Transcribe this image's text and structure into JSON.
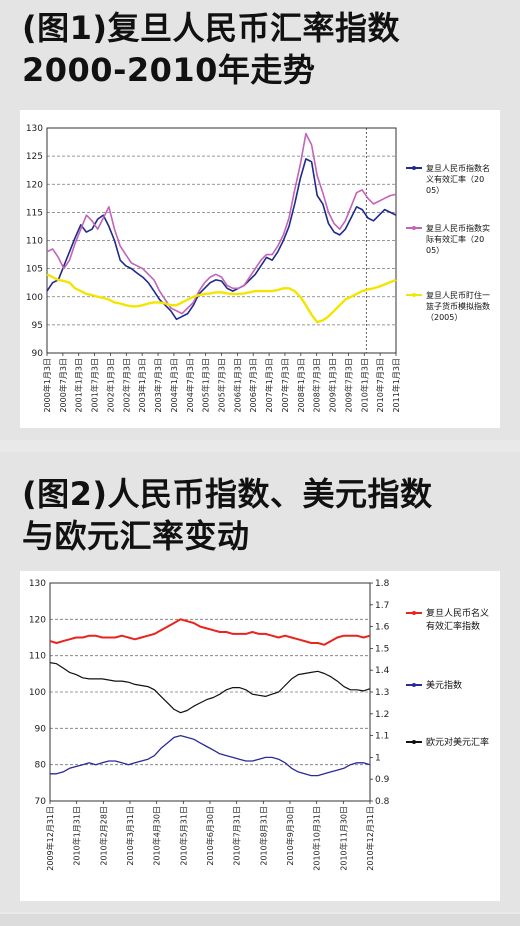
{
  "chart1": {
    "title_line1": "(图1)复旦人民币汇率指数",
    "title_line2": "2000-2010年走势"
  },
  "chart2": {
    "title_line1": "(图2)人民币指数、美元指数",
    "title_line2": "与欧元汇率变动"
  },
  "colors": {
    "blue": "#1f2a8c",
    "pink": "#c264b8",
    "yellow": "#f2e600",
    "red": "#e8241c",
    "navy": "#2a2a9a",
    "black": "#111111"
  },
  "chart_data": [
    {
      "type": "line",
      "ylim": [
        90,
        130
      ],
      "yticks": [
        "130",
        "125",
        "120",
        "115",
        "110",
        "105",
        "100",
        "95",
        "90"
      ],
      "grid": true,
      "legend_position": "right",
      "xticklabels": [
        "2000年1月3日",
        "2000年7月3日",
        "2001年1月3日",
        "2001年7月3日",
        "2002年1月3日",
        "2002年7月3日",
        "2003年1月3日",
        "2003年7月3日",
        "2004年1月3日",
        "2004年7月3日",
        "2005年1月3日",
        "2005年7月3日",
        "2006年1月3日",
        "2006年7月3日",
        "2007年1月3日",
        "2007年7月3日",
        "2008年1月3日",
        "2008年7月3日",
        "2009年1月3日",
        "2009年7月3日",
        "2010年1月3日",
        "2010年7月3日",
        "2011年1月3日"
      ],
      "legend": [
        "复旦人民币指数名义有效汇率（2005）",
        "复旦人民币指数实际有效汇率（2005）",
        "复旦人民币盯住一篮子货币模拟指数（2005）"
      ],
      "series": [
        {
          "name": "复旦人民币指数名义有效汇率（2005）",
          "color": "#1f2a8c",
          "values": [
            101,
            102.5,
            103,
            105.5,
            108,
            110.5,
            112.8,
            111.5,
            112,
            113.8,
            114.5,
            112.5,
            110,
            106.5,
            105.5,
            105,
            104.2,
            103.5,
            102.5,
            101,
            99.5,
            98.5,
            97.5,
            96,
            96.5,
            97,
            98.5,
            100.5,
            101.5,
            102.5,
            103,
            102.8,
            101.5,
            101,
            101.5,
            102,
            103,
            104,
            105.5,
            107,
            106.5,
            108,
            110,
            112.5,
            116.5,
            121,
            124.5,
            124,
            118,
            116.5,
            113,
            111.5,
            111,
            112,
            114,
            116,
            115.5,
            114,
            113.5,
            114.5,
            115.5,
            115,
            114.5
          ]
        },
        {
          "name": "复旦人民币指数实际有效汇率（2005）",
          "color": "#c264b8",
          "values": [
            108,
            108.5,
            107,
            105,
            106.5,
            109.5,
            112,
            114.5,
            113.5,
            112,
            114,
            116,
            112,
            109,
            107.5,
            106,
            105.5,
            105,
            104,
            103,
            101,
            99.5,
            98,
            97.5,
            97,
            98,
            99,
            101,
            102.5,
            103.5,
            104,
            103.5,
            102,
            101.5,
            101.5,
            102,
            103.5,
            105,
            106.5,
            107.5,
            107.5,
            109,
            111,
            114,
            119,
            123.5,
            129,
            127,
            121.5,
            118.5,
            115,
            113,
            112,
            113.5,
            116,
            118.5,
            119,
            117.5,
            116.5,
            117,
            117.5,
            118,
            118.2
          ]
        },
        {
          "name": "复旦人民币盯住一篮子货币模拟指数（2005）",
          "color": "#f2e600",
          "values": [
            104,
            103.5,
            103,
            102.8,
            102.5,
            101.5,
            101,
            100.5,
            100.3,
            100,
            99.8,
            99.5,
            99,
            98.8,
            98.5,
            98.3,
            98.3,
            98.5,
            98.8,
            99,
            99,
            98.8,
            98.5,
            98.5,
            99,
            99.5,
            100,
            100.3,
            100.5,
            100.6,
            100.8,
            100.8,
            100.6,
            100.5,
            100.5,
            100.6,
            100.8,
            101,
            101,
            101,
            101,
            101.2,
            101.5,
            101.5,
            101,
            100,
            98.5,
            96.8,
            95.5,
            95.8,
            96.5,
            97.5,
            98.5,
            99.5,
            100,
            100.5,
            101,
            101.3,
            101.5,
            101.8,
            102.2,
            102.6,
            103
          ]
        }
      ]
    },
    {
      "type": "line",
      "ylim": [
        70,
        130
      ],
      "y2lim": [
        0.8,
        1.8
      ],
      "yticks": [
        "130",
        "120",
        "110",
        "100",
        "90",
        "80",
        "70"
      ],
      "y2ticks": [
        "1.8",
        "1.7",
        "1.6",
        "1.5",
        "1.4",
        "1.3",
        "1.2",
        "1.1",
        "1",
        "0.9",
        "0.8"
      ],
      "grid": true,
      "legend_position": "right",
      "xticklabels": [
        "2009年12月31日",
        "2010年1月31日",
        "2010年2月28日",
        "2010年3月31日",
        "2010年4月30日",
        "2010年5月31日",
        "2010年6月30日",
        "2010年7月31日",
        "2010年8月31日",
        "2010年9月30日",
        "2010年10月31日",
        "2010年11月30日",
        "2010年12月31日"
      ],
      "legend": [
        "复旦人民币名义有效汇率指数",
        "美元指数",
        "欧元对美元汇率"
      ],
      "series": [
        {
          "name": "复旦人民币名义有效汇率指数",
          "color": "#e8241c",
          "axis": "left",
          "values": [
            114,
            113.5,
            114,
            114.5,
            115,
            115,
            115.5,
            115.5,
            115,
            115,
            115,
            115.5,
            115,
            114.5,
            115,
            115.5,
            116,
            117,
            118,
            119,
            120,
            119.5,
            119,
            118,
            117.5,
            117,
            116.5,
            116.5,
            116,
            116,
            116,
            116.5,
            116,
            116,
            115.5,
            115,
            115.5,
            115,
            114.5,
            114,
            113.5,
            113.5,
            113,
            114,
            115,
            115.5,
            115.5,
            115.5,
            115,
            115.5
          ]
        },
        {
          "name": "美元指数",
          "color": "#2a2a9a",
          "axis": "left",
          "values": [
            77.5,
            77.5,
            78,
            79,
            79.5,
            80,
            80.5,
            80,
            80.5,
            81,
            81,
            80.5,
            80,
            80.5,
            81,
            81.5,
            82.5,
            84.5,
            86,
            87.5,
            88,
            87.5,
            87,
            86,
            85,
            84,
            83,
            82.5,
            82,
            81.5,
            81,
            81,
            81.5,
            82,
            82,
            81.5,
            80.5,
            79,
            78,
            77.5,
            77,
            77,
            77.5,
            78,
            78.5,
            79,
            80,
            80.5,
            80.5,
            80
          ]
        },
        {
          "name": "欧元对美元汇率",
          "color": "#111111",
          "axis": "right",
          "values": [
            1.435,
            1.43,
            1.41,
            1.39,
            1.38,
            1.365,
            1.36,
            1.36,
            1.36,
            1.355,
            1.35,
            1.35,
            1.345,
            1.335,
            1.33,
            1.325,
            1.31,
            1.28,
            1.25,
            1.22,
            1.205,
            1.215,
            1.235,
            1.25,
            1.265,
            1.275,
            1.29,
            1.31,
            1.32,
            1.32,
            1.31,
            1.29,
            1.285,
            1.28,
            1.29,
            1.3,
            1.33,
            1.36,
            1.38,
            1.385,
            1.39,
            1.395,
            1.385,
            1.37,
            1.35,
            1.325,
            1.31,
            1.31,
            1.305,
            1.315
          ]
        }
      ]
    }
  ]
}
